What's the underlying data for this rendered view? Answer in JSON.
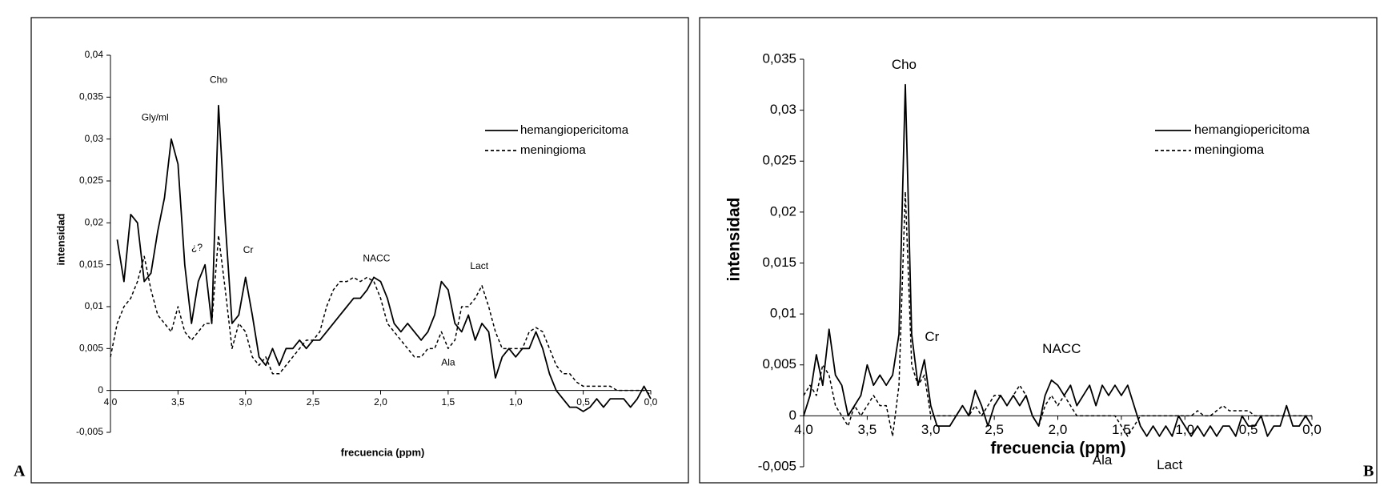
{
  "chart_data": [
    {
      "type": "line",
      "panel": "A",
      "x_label": "frecuencia (ppm)",
      "y_label": "intensidad",
      "xlim": [
        4.0,
        0.0
      ],
      "ylim": [
        -0.005,
        0.04
      ],
      "xticks": [
        {
          "value": 4.0,
          "label": "4,0"
        },
        {
          "value": 3.5,
          "label": "3,5"
        },
        {
          "value": 3.0,
          "label": "3,0"
        },
        {
          "value": 2.5,
          "label": "2,5"
        },
        {
          "value": 2.0,
          "label": "2,0"
        },
        {
          "value": 1.5,
          "label": "1,5"
        },
        {
          "value": 1.0,
          "label": "1,0"
        },
        {
          "value": 0.5,
          "label": "0,5"
        },
        {
          "value": 0.0,
          "label": "0,0"
        }
      ],
      "yticks": [
        {
          "value": 0.04,
          "label": "0,04"
        },
        {
          "value": 0.035,
          "label": "0,035"
        },
        {
          "value": 0.03,
          "label": "0,03"
        },
        {
          "value": 0.025,
          "label": "0,025"
        },
        {
          "value": 0.02,
          "label": "0,02"
        },
        {
          "value": 0.015,
          "label": "0,015"
        },
        {
          "value": 0.01,
          "label": "0,01"
        },
        {
          "value": 0.005,
          "label": "0,005"
        },
        0,
        {
          "value": -0.005,
          "label": "-0,005"
        }
      ],
      "legend": "top-right",
      "x": [
        4.0,
        3.95,
        3.9,
        3.85,
        3.8,
        3.75,
        3.7,
        3.65,
        3.6,
        3.55,
        3.5,
        3.45,
        3.4,
        3.35,
        3.3,
        3.25,
        3.2,
        3.15,
        3.1,
        3.05,
        3.0,
        2.95,
        2.9,
        2.85,
        2.8,
        2.75,
        2.7,
        2.65,
        2.6,
        2.55,
        2.5,
        2.45,
        2.4,
        2.35,
        2.3,
        2.25,
        2.2,
        2.15,
        2.1,
        2.05,
        2.0,
        1.95,
        1.9,
        1.85,
        1.8,
        1.75,
        1.7,
        1.65,
        1.6,
        1.55,
        1.5,
        1.45,
        1.4,
        1.35,
        1.3,
        1.25,
        1.2,
        1.15,
        1.1,
        1.05,
        1.0,
        0.95,
        0.9,
        0.85,
        0.8,
        0.75,
        0.7,
        0.65,
        0.6,
        0.55,
        0.5,
        0.45,
        0.4,
        0.35,
        0.3,
        0.25,
        0.2,
        0.15,
        0.1,
        0.05,
        0.0
      ],
      "series": [
        {
          "name": "hemangiopericitoma",
          "color": "#000000",
          "style": "solid",
          "values": [
            null,
            0.018,
            0.013,
            0.021,
            0.02,
            0.013,
            0.014,
            0.019,
            0.023,
            0.03,
            0.027,
            0.015,
            0.008,
            0.013,
            0.015,
            0.008,
            0.034,
            0.02,
            0.008,
            0.009,
            0.0135,
            0.009,
            0.004,
            0.003,
            0.005,
            0.003,
            0.005,
            0.005,
            0.006,
            0.005,
            0.006,
            0.006,
            0.007,
            0.008,
            0.009,
            0.01,
            0.011,
            0.011,
            0.012,
            0.0135,
            0.013,
            0.011,
            0.008,
            0.007,
            0.008,
            0.007,
            0.006,
            0.007,
            0.009,
            0.013,
            0.012,
            0.008,
            0.007,
            0.009,
            0.006,
            0.008,
            0.007,
            0.0015,
            0.004,
            0.005,
            0.004,
            0.005,
            0.005,
            0.007,
            0.005,
            0.002,
            0.0,
            -0.001,
            -0.002,
            -0.002,
            -0.0025,
            -0.002,
            -0.001,
            -0.002,
            -0.001,
            -0.001,
            -0.001,
            -0.002,
            -0.001,
            0.0005,
            -0.001
          ]
        },
        {
          "name": "meningioma",
          "color": "#000000",
          "style": "dashed",
          "values": [
            0.004,
            0.008,
            0.01,
            0.011,
            0.013,
            0.016,
            0.012,
            0.009,
            0.008,
            0.007,
            0.01,
            0.007,
            0.006,
            0.007,
            0.008,
            0.008,
            0.0185,
            0.012,
            0.005,
            0.008,
            0.007,
            0.004,
            0.003,
            0.004,
            0.002,
            0.002,
            0.003,
            0.004,
            0.005,
            0.006,
            0.006,
            0.007,
            0.01,
            0.012,
            0.013,
            0.013,
            0.0135,
            0.013,
            0.0135,
            0.013,
            0.011,
            0.008,
            0.007,
            0.006,
            0.005,
            0.004,
            0.004,
            0.005,
            0.005,
            0.007,
            0.005,
            0.006,
            0.01,
            0.01,
            0.011,
            0.0125,
            0.01,
            0.007,
            0.005,
            0.005,
            0.005,
            0.005,
            0.007,
            0.0075,
            0.007,
            0.005,
            0.003,
            0.002,
            0.002,
            0.001,
            0.0005,
            0.0005,
            0.0005,
            0.0005,
            0.0005,
            0.0,
            0.0,
            0.0,
            0.0,
            0.0,
            -0.0005
          ]
        }
      ],
      "annotations": [
        {
          "text": "Gly/ml",
          "x": 3.67,
          "y": 0.0325
        },
        {
          "text": "Cho",
          "x": 3.2,
          "y": 0.037
        },
        {
          "text": "¿?",
          "x": 3.36,
          "y": 0.017
        },
        {
          "text": "Cr",
          "x": 2.98,
          "y": 0.0167
        },
        {
          "text": "NACC",
          "x": 2.03,
          "y": 0.0157
        },
        {
          "text": "Lact",
          "x": 1.27,
          "y": 0.0148
        },
        {
          "text": "Ala",
          "x": 1.5,
          "y": 0.0033
        }
      ]
    },
    {
      "type": "line",
      "panel": "B",
      "x_label": "frecuencia (ppm)",
      "y_label": "intensidad",
      "xlim": [
        4.0,
        0.0
      ],
      "ylim": [
        -0.005,
        0.035
      ],
      "xticks": [
        {
          "value": 4.0,
          "label": "4,0"
        },
        {
          "value": 3.5,
          "label": "3,5"
        },
        {
          "value": 3.0,
          "label": "3,0"
        },
        {
          "value": 2.5,
          "label": "2,5"
        },
        {
          "value": 2.0,
          "label": "2,0"
        },
        {
          "value": 1.5,
          "label": "1,5"
        },
        {
          "value": 1.0,
          "label": "1,0"
        },
        {
          "value": 0.5,
          "label": "0,5"
        },
        {
          "value": 0.0,
          "label": "0,0"
        }
      ],
      "yticks": [
        {
          "value": 0.035,
          "label": "0,035"
        },
        {
          "value": 0.03,
          "label": "0,03"
        },
        {
          "value": 0.025,
          "label": "0,025"
        },
        {
          "value": 0.02,
          "label": "0,02"
        },
        {
          "value": 0.015,
          "label": "0,015"
        },
        {
          "value": 0.01,
          "label": "0,01"
        },
        {
          "value": 0.005,
          "label": "0,005"
        },
        0,
        {
          "value": -0.005,
          "label": "-0,005"
        }
      ],
      "legend": "top-right",
      "x": [
        4.0,
        3.95,
        3.9,
        3.85,
        3.8,
        3.75,
        3.7,
        3.65,
        3.6,
        3.55,
        3.5,
        3.45,
        3.4,
        3.35,
        3.3,
        3.25,
        3.2,
        3.15,
        3.1,
        3.05,
        3.0,
        2.95,
        2.9,
        2.85,
        2.8,
        2.75,
        2.7,
        2.65,
        2.6,
        2.55,
        2.5,
        2.45,
        2.4,
        2.35,
        2.3,
        2.25,
        2.2,
        2.15,
        2.1,
        2.05,
        2.0,
        1.95,
        1.9,
        1.85,
        1.8,
        1.75,
        1.7,
        1.65,
        1.6,
        1.55,
        1.5,
        1.45,
        1.4,
        1.35,
        1.3,
        1.25,
        1.2,
        1.15,
        1.1,
        1.05,
        1.0,
        0.95,
        0.9,
        0.85,
        0.8,
        0.75,
        0.7,
        0.65,
        0.6,
        0.55,
        0.5,
        0.45,
        0.4,
        0.35,
        0.3,
        0.25,
        0.2,
        0.15,
        0.1,
        0.05,
        0.0
      ],
      "series": [
        {
          "name": "hemangiopericitoma",
          "color": "#000000",
          "style": "solid",
          "values": [
            0.0,
            0.002,
            0.006,
            0.003,
            0.0085,
            0.004,
            0.003,
            0.0,
            0.001,
            0.002,
            0.005,
            0.003,
            0.004,
            0.003,
            0.004,
            0.008,
            0.0325,
            0.008,
            0.003,
            0.0055,
            0.001,
            -0.001,
            -0.001,
            -0.001,
            0.0,
            0.001,
            0.0,
            0.0025,
            0.001,
            -0.001,
            0.001,
            0.002,
            0.001,
            0.002,
            0.001,
            0.002,
            0.0,
            -0.001,
            0.002,
            0.0035,
            0.003,
            0.002,
            0.003,
            0.001,
            0.002,
            0.003,
            0.001,
            0.003,
            0.002,
            0.003,
            0.002,
            0.003,
            0.001,
            -0.001,
            -0.002,
            -0.001,
            -0.002,
            -0.001,
            -0.002,
            0.0,
            -0.001,
            -0.002,
            -0.001,
            -0.002,
            -0.001,
            -0.002,
            -0.001,
            -0.001,
            -0.002,
            0.0,
            -0.001,
            -0.001,
            0.0,
            -0.002,
            -0.001,
            -0.001,
            0.001,
            -0.001,
            -0.001,
            0.0,
            -0.001
          ]
        },
        {
          "name": "meningioma",
          "color": "#000000",
          "style": "dashed",
          "values": [
            0.002,
            0.003,
            0.002,
            0.005,
            0.004,
            0.001,
            0.0,
            -0.001,
            0.001,
            0.0,
            0.001,
            0.002,
            0.001,
            0.001,
            -0.002,
            0.003,
            0.022,
            0.005,
            0.003,
            0.004,
            0.0,
            0.0,
            0.0,
            0.0,
            0.0,
            0.001,
            0.0,
            0.001,
            0.0,
            0.001,
            0.002,
            0.002,
            0.001,
            0.002,
            0.003,
            0.002,
            0.0,
            -0.001,
            0.001,
            0.002,
            0.001,
            0.002,
            0.001,
            0.0,
            0.0,
            0.0,
            0.0,
            0.0,
            0.0,
            0.0,
            -0.001,
            -0.002,
            -0.001,
            0.0,
            0.0,
            0.0,
            0.0,
            0.0,
            0.0,
            0.0,
            0.0,
            0.0,
            0.0005,
            0.0,
            0.0,
            0.0005,
            0.001,
            0.0005,
            0.0005,
            0.0005,
            0.0005,
            0.0,
            0.0,
            0.0,
            0.0,
            0.0,
            0.0,
            0.0,
            0.0,
            0.0,
            0.0
          ]
        }
      ],
      "annotations": [
        {
          "text": "Cho",
          "x": 3.21,
          "y": 0.0344
        },
        {
          "text": "Cr",
          "x": 2.99,
          "y": 0.0077
        },
        {
          "text": "NACC",
          "x": 1.97,
          "y": 0.0065
        },
        {
          "text": "Ala",
          "x": 1.65,
          "y": -0.0044
        },
        {
          "text": "Lact",
          "x": 1.12,
          "y": -0.0049
        }
      ]
    }
  ]
}
